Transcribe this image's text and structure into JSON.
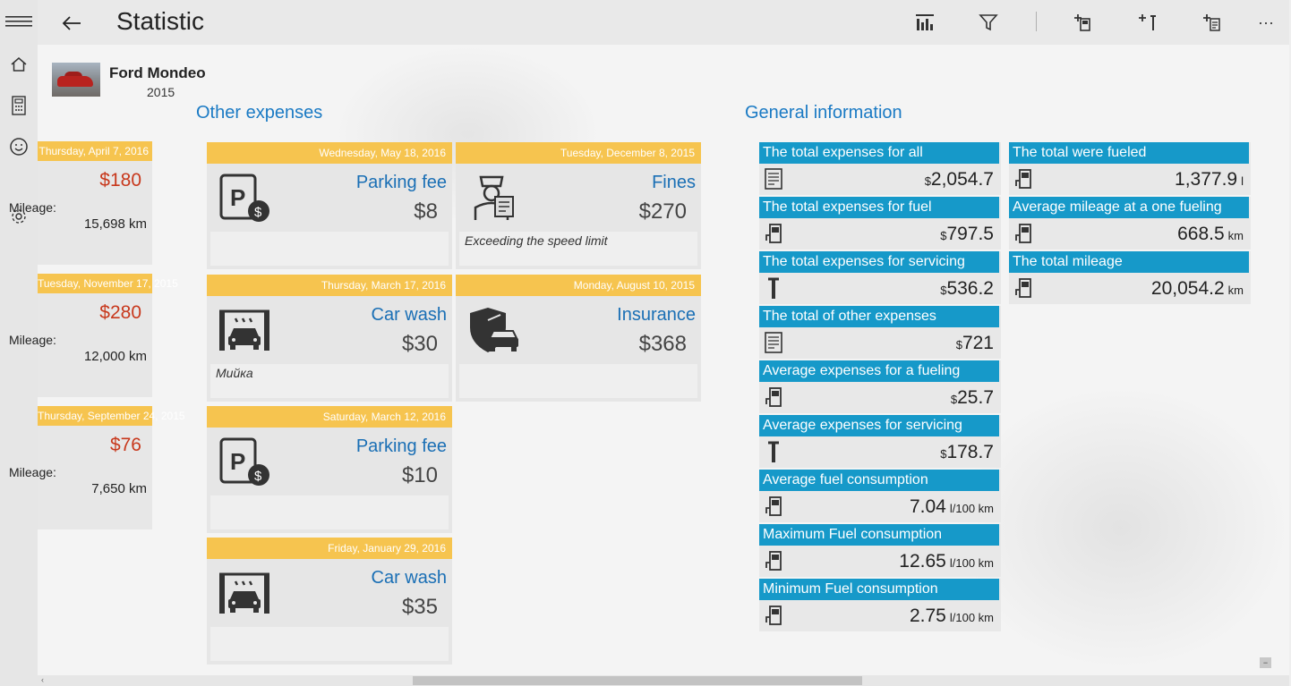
{
  "header": {
    "title": "Statistic",
    "more_label": "···"
  },
  "car": {
    "name": "Ford Mondeo",
    "year": "2015"
  },
  "sections": {
    "other": "Other expenses",
    "general": "General information"
  },
  "fuel_cards": [
    {
      "date": "Thursday, April 7, 2016",
      "price": "$180",
      "label": "Mileage:",
      "km": "15,698 km"
    },
    {
      "date": "Tuesday, November 17, 2015",
      "price": "$280",
      "label": "Mileage:",
      "km": "12,000 km"
    },
    {
      "date": "Thursday, September 24, 2015",
      "price": "$76",
      "label": "Mileage:",
      "km": "7,650 km"
    }
  ],
  "expenses": [
    {
      "date": "Wednesday, May 18, 2016",
      "name": "Parking fee",
      "amount": "$8",
      "note": "",
      "icon": "parking-icon"
    },
    {
      "date": "Tuesday, December 8, 2015",
      "name": "Fines",
      "amount": "$270",
      "note": "Exceeding the speed limit",
      "icon": "police-icon"
    },
    {
      "date": "Thursday, March 17, 2016",
      "name": "Car wash",
      "amount": "$30",
      "note": "Мийка",
      "icon": "car-wash-icon"
    },
    {
      "date": "Monday, August 10, 2015",
      "name": "Insurance",
      "amount": "$368",
      "note": "",
      "icon": "insurance-icon"
    },
    {
      "date": "Saturday, March 12, 2016",
      "name": "Parking fee",
      "amount": "$10",
      "note": "",
      "icon": "parking-icon"
    },
    {
      "date": "Friday, January 29, 2016",
      "name": "Car wash",
      "amount": "$35",
      "note": "",
      "icon": "car-wash-icon"
    }
  ],
  "general_info": [
    {
      "label": "The total expenses for all",
      "prefix": "$",
      "value": "2,054.7",
      "unit": "",
      "icon": "receipt-icon"
    },
    {
      "label": "The total expenses for fuel",
      "prefix": "$",
      "value": "797.5",
      "unit": "",
      "icon": "fuel-pump-icon"
    },
    {
      "label": "The total expenses for servicing",
      "prefix": "$",
      "value": "536.2",
      "unit": "",
      "icon": "wrench-icon"
    },
    {
      "label": "The total of other expenses",
      "prefix": "$",
      "value": "721",
      "unit": "",
      "icon": "receipt-icon"
    },
    {
      "label": "Average expenses for a fueling",
      "prefix": "$",
      "value": "25.7",
      "unit": "",
      "icon": "fuel-pump-icon"
    },
    {
      "label": "Average expenses for servicing",
      "prefix": "$",
      "value": "178.7",
      "unit": "",
      "icon": "wrench-icon"
    },
    {
      "label": "Average fuel consumption",
      "prefix": "",
      "value": "7.04",
      "unit": "l/100 km",
      "icon": "fuel-pump-icon"
    },
    {
      "label": "Maximum Fuel consumption",
      "prefix": "",
      "value": "12.65",
      "unit": "l/100 km",
      "icon": "fuel-pump-icon"
    },
    {
      "label": "Minimum Fuel consumption",
      "prefix": "",
      "value": "2.75",
      "unit": "l/100 km",
      "icon": "fuel-pump-icon"
    },
    {
      "label": "The total were fueled",
      "prefix": "",
      "value": "1,377.9",
      "unit": "l",
      "icon": "fuel-pump-icon"
    },
    {
      "label": "Average mileage at a one fueling",
      "prefix": "",
      "value": "668.5",
      "unit": "km",
      "icon": "fuel-pump-icon"
    },
    {
      "label": "The total mileage",
      "prefix": "",
      "value": "20,054.2",
      "unit": "km",
      "icon": "fuel-pump-icon"
    }
  ],
  "colors": {
    "accent_blue": "#1699c9",
    "card_header": "#f6c44f",
    "price_red": "#c8381c",
    "title_blue": "#1a7ac4"
  }
}
